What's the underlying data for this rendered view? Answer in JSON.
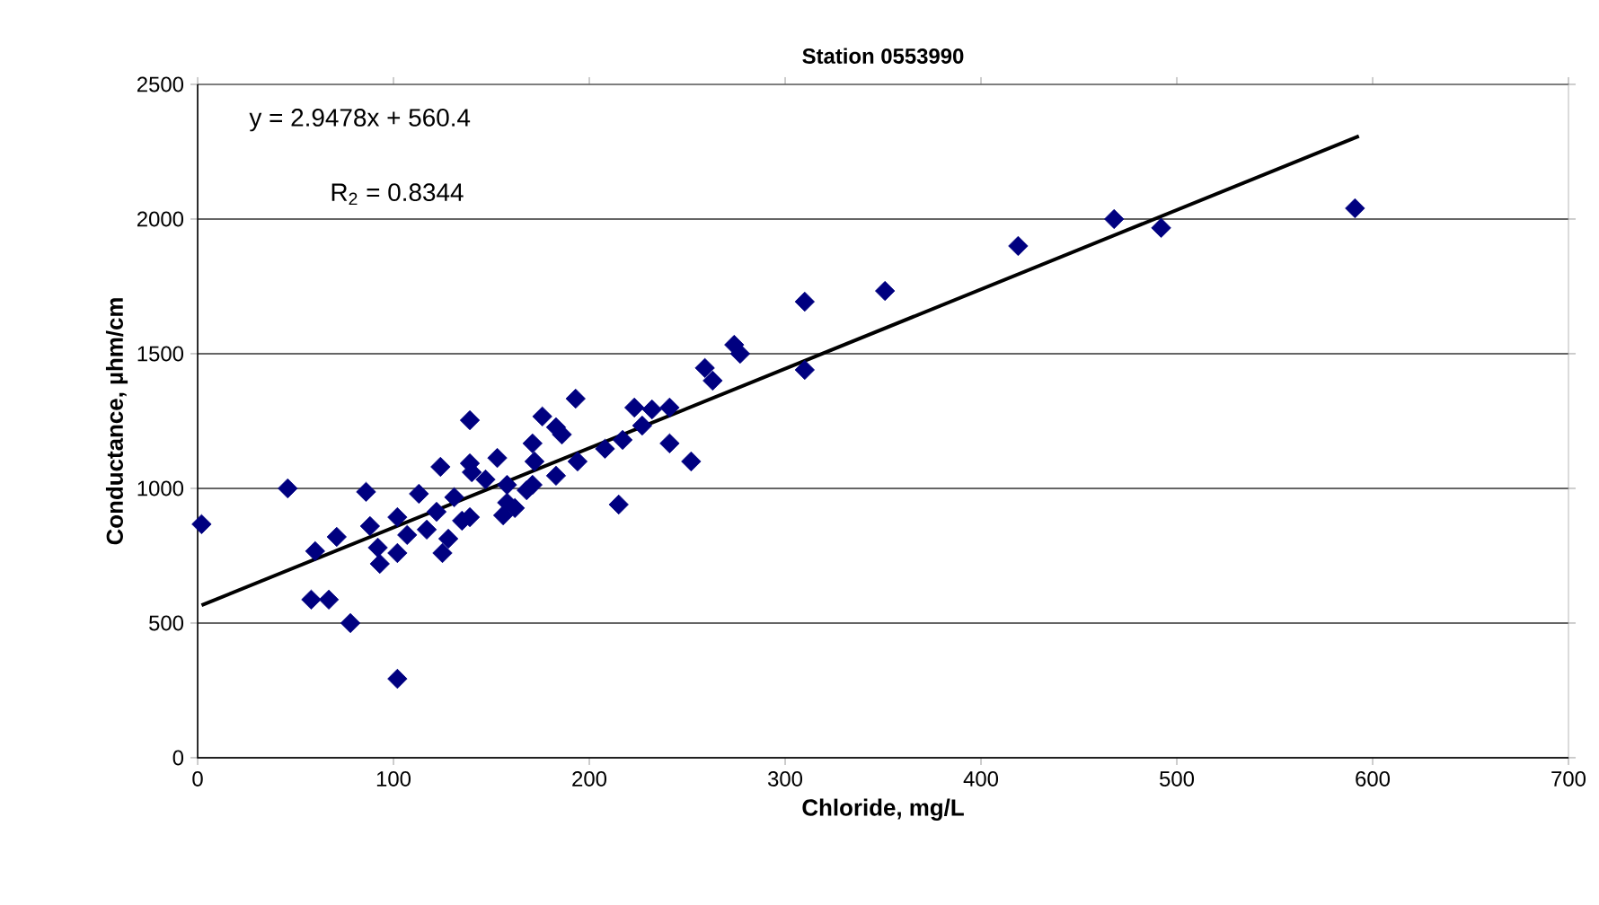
{
  "chart_data": {
    "type": "scatter",
    "title": "Station 0553990",
    "xlabel": "Chloride, mg/L",
    "ylabel": "Conductance, µhm/cm",
    "annotations": [
      "y = 2.9478x + 560.4",
      "R$_{2}$ = 0.8344"
    ],
    "xlim": [
      0,
      700
    ],
    "xticks": [
      0,
      100,
      200,
      300,
      400,
      500,
      600,
      700
    ],
    "ylim": [
      0,
      2500
    ],
    "yticks": [
      0,
      500,
      1000,
      1500,
      2000,
      2500
    ],
    "grid": "y",
    "series": [
      {
        "color": "#000080",
        "marker": "diamond",
        "x": [
          2,
          46,
          60,
          71,
          58,
          67,
          78,
          102,
          86,
          88,
          93,
          102,
          102,
          124,
          139,
          125,
          139,
          153,
          156,
          113,
          122,
          131,
          135,
          140,
          168,
          172,
          92,
          107,
          117,
          128,
          147,
          162,
          193,
          176,
          183,
          186,
          171,
          139,
          194,
          183,
          208,
          223,
          232,
          241,
          217,
          227,
          241,
          252,
          215,
          259,
          263,
          274,
          277,
          310,
          310,
          351,
          158,
          171,
          158,
          419,
          468,
          492,
          591
        ],
        "values": [
          867,
          1000,
          767,
          820,
          587,
          587,
          500,
          293,
          987,
          860,
          720,
          893,
          760,
          1080,
          1253,
          760,
          893,
          1113,
          900,
          980,
          913,
          967,
          880,
          1060,
          993,
          1100,
          780,
          827,
          847,
          813,
          1033,
          927,
          1333,
          1267,
          1227,
          1200,
          1167,
          1093,
          1100,
          1047,
          1147,
          1300,
          1293,
          1300,
          1180,
          1233,
          1167,
          1100,
          940,
          1447,
          1400,
          1533,
          1500,
          1693,
          1440,
          1733,
          1013,
          1013,
          947,
          1900,
          2000,
          1967,
          2040
        ]
      },
      {
        "type": "line",
        "color": "#000000",
        "marker": "none",
        "line_style": "solid",
        "x": [
          2,
          593
        ],
        "values": [
          566,
          2308
        ]
      }
    ]
  }
}
